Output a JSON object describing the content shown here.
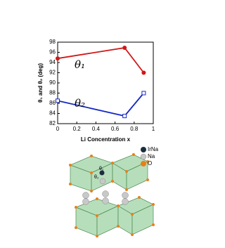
{
  "chart_data": {
    "type": "line",
    "x_label": "Li Concentration x",
    "y_label": "θ₁ and θ₂ (deg)",
    "x": [
      0,
      0.7,
      0.9
    ],
    "series": [
      {
        "name": "θ₁",
        "color": "#d01818",
        "marker": "circle",
        "values": [
          94.8,
          96.9,
          92
        ]
      },
      {
        "name": "θ₂",
        "color": "#1428c0",
        "marker": "open-square",
        "values": [
          86.5,
          83.5,
          88
        ]
      }
    ],
    "xlim": [
      0,
      1
    ],
    "xticks": [
      0,
      0.2,
      0.4,
      0.6,
      0.8,
      1
    ],
    "ylim": [
      82,
      98
    ],
    "yticks": [
      82,
      84,
      86,
      88,
      90,
      92,
      94,
      96,
      98
    ]
  },
  "structure": {
    "legend": [
      "IrNa",
      "Na",
      "O"
    ],
    "angle_labels": [
      "θ₁",
      "θ₂"
    ]
  }
}
